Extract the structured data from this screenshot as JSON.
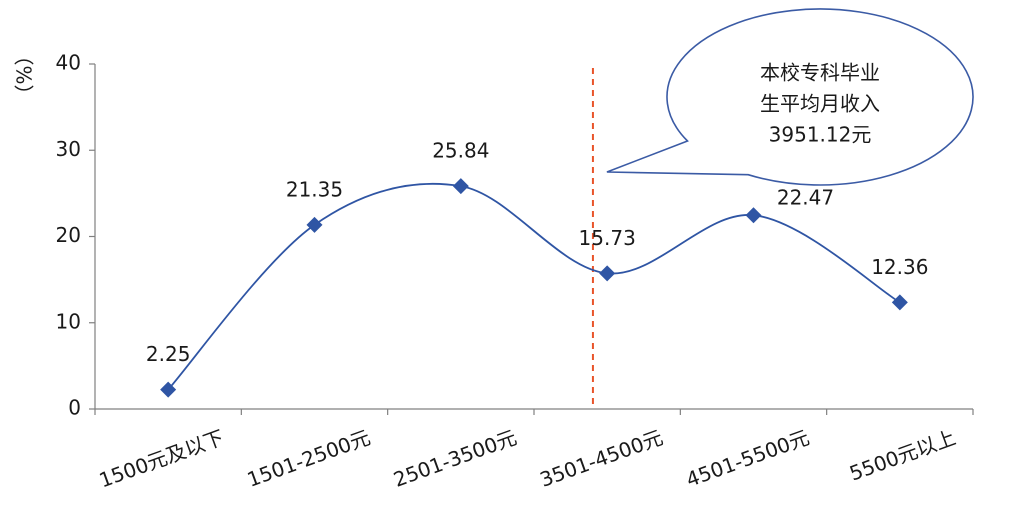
{
  "chart_data": {
    "type": "line",
    "y_unit_label": "（%）",
    "categories": [
      "1500元及以下",
      "1501-2500元",
      "2501-3500元",
      "3501-4500元",
      "4501-5500元",
      "5500元以上"
    ],
    "series": [
      {
        "values": [
          2.25,
          21.35,
          25.84,
          15.73,
          22.47,
          12.36
        ]
      }
    ],
    "data_labels": [
      "2.25",
      "21.35",
      "25.84",
      "15.73",
      "22.47",
      "12.36"
    ],
    "ylim": [
      0,
      40
    ],
    "yticks": [
      0,
      10,
      20,
      30,
      40
    ],
    "smooth": true,
    "grid": false,
    "reference_line": {
      "x": 3951.12,
      "color": "#e8542a",
      "style": "dashed"
    },
    "callout": {
      "lines": [
        "本校专科毕业",
        "生平均月收入",
        "3951.12元"
      ]
    },
    "colors": {
      "line": "#2f55a4",
      "marker": "#2f55a4",
      "callout_border": "#3b5ba5"
    }
  }
}
